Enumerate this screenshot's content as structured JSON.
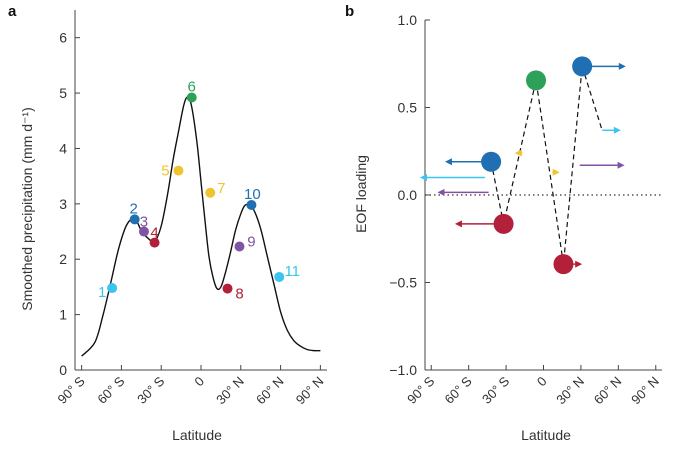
{
  "chart_data": [
    {
      "panel": "a",
      "type": "line",
      "xlabel": "Latitude",
      "ylabel": "Smoothed precipitation (mm d⁻¹)",
      "xlim": [
        -95,
        95
      ],
      "ylim": [
        0,
        6.5
      ],
      "x_ticks": [
        -90,
        -60,
        -30,
        0,
        30,
        60,
        90
      ],
      "x_tick_labels": [
        "90° S",
        "60° S",
        "30° S",
        "0",
        "30° N",
        "60° N",
        "90° N"
      ],
      "y_ticks": [
        0,
        1,
        2,
        3,
        4,
        5,
        6
      ],
      "y_tick_labels": [
        "0",
        "1",
        "2",
        "3",
        "4",
        "5",
        "6"
      ],
      "curve": {
        "x": [
          -90,
          -80,
          -74,
          -68,
          -62,
          -56,
          -50,
          -45,
          -40,
          -35,
          -30,
          -25,
          -21,
          -17,
          -13,
          -10,
          -7,
          -3,
          0,
          3,
          6,
          9,
          12,
          15,
          18,
          22,
          26,
          30,
          33,
          36,
          40,
          45,
          50,
          55,
          60,
          65,
          70,
          75,
          80,
          85,
          90
        ],
        "y": [
          0.25,
          0.5,
          0.98,
          1.58,
          2.2,
          2.62,
          2.73,
          2.52,
          2.38,
          2.32,
          2.6,
          3.2,
          3.8,
          4.3,
          4.78,
          4.93,
          4.75,
          4.1,
          3.4,
          2.7,
          2.05,
          1.68,
          1.47,
          1.5,
          1.72,
          2.1,
          2.52,
          2.82,
          2.97,
          2.98,
          2.88,
          2.55,
          2.05,
          1.55,
          1.05,
          0.72,
          0.53,
          0.43,
          0.37,
          0.35,
          0.35
        ]
      },
      "points": [
        {
          "label": "1",
          "x": -67,
          "y": 1.48,
          "color": "#3cc3ef"
        },
        {
          "label": "2",
          "x": -50,
          "y": 2.72,
          "color": "#1f6fb2"
        },
        {
          "label": "3",
          "x": -43,
          "y": 2.5,
          "color": "#8154a3"
        },
        {
          "label": "4",
          "x": -35,
          "y": 2.3,
          "color": "#b3203a"
        },
        {
          "label": "5",
          "x": -17,
          "y": 3.6,
          "color": "#f0c330"
        },
        {
          "label": "6",
          "x": -7,
          "y": 4.92,
          "color": "#2da05a"
        },
        {
          "label": "7",
          "x": 7,
          "y": 3.2,
          "color": "#f0c330"
        },
        {
          "label": "8",
          "x": 20,
          "y": 1.47,
          "color": "#b3203a"
        },
        {
          "label": "9",
          "x": 29,
          "y": 2.23,
          "color": "#8154a3"
        },
        {
          "label": "10",
          "x": 38,
          "y": 2.98,
          "color": "#1f6fb2"
        },
        {
          "label": "11",
          "x": 59,
          "y": 1.68,
          "color": "#3cc3ef"
        }
      ]
    },
    {
      "panel": "b",
      "type": "scatter",
      "xlabel": "Latitude",
      "ylabel": "EOF loading",
      "xlim": [
        -95,
        95
      ],
      "ylim": [
        -1.0,
        1.0
      ],
      "x_ticks": [
        -90,
        -60,
        -30,
        0,
        30,
        60,
        90
      ],
      "x_tick_labels": [
        "90° S",
        "60° S",
        "30° S",
        "0",
        "30° N",
        "60° N",
        "90° N"
      ],
      "y_ticks": [
        -1.0,
        -0.5,
        0.0,
        0.5,
        1.0
      ],
      "y_tick_labels": [
        "−1.0",
        "−0.5",
        "0.0",
        "0.5",
        "1.0"
      ],
      "zero_line": "dotted",
      "points": [
        {
          "x": -42,
          "y": 0.19,
          "color": "#1f6fb2",
          "size": 10
        },
        {
          "x": -32,
          "y": -0.165,
          "color": "#b3203a",
          "size": 10
        },
        {
          "x": -6,
          "y": 0.655,
          "color": "#2da05a",
          "size": 10
        },
        {
          "x": 16,
          "y": -0.395,
          "color": "#b3203a",
          "size": 10
        },
        {
          "x": 31,
          "y": 0.735,
          "color": "#1f6fb2",
          "size": 10
        }
      ],
      "dashed_path": {
        "x": [
          -42,
          -32,
          -6,
          16,
          31,
          47
        ],
        "y": [
          0.19,
          -0.165,
          0.655,
          -0.395,
          0.735,
          0.37
        ]
      },
      "arrows": [
        {
          "x": -42,
          "y": 0.19,
          "dx": -37,
          "color": "#1f6fb2"
        },
        {
          "x": -47,
          "y": 0.1,
          "dx": -52,
          "color": "#3cc3ef"
        },
        {
          "x": -44,
          "y": 0.015,
          "dx": -41,
          "color": "#8154a3"
        },
        {
          "x": -32,
          "y": -0.165,
          "dx": -39,
          "color": "#b3203a"
        },
        {
          "x": -17,
          "y": 0.24,
          "dx": -6,
          "color": "#f0c330"
        },
        {
          "x": 7,
          "y": 0.13,
          "dx": 6,
          "color": "#f0c330"
        },
        {
          "x": 16,
          "y": -0.395,
          "dx": 15,
          "color": "#b3203a"
        },
        {
          "x": 29,
          "y": 0.17,
          "dx": 36,
          "color": "#8154a3"
        },
        {
          "x": 31,
          "y": 0.735,
          "dx": 35,
          "color": "#1f6fb2"
        },
        {
          "x": 47,
          "y": 0.37,
          "dx": 15,
          "color": "#3cc3ef"
        }
      ]
    }
  ]
}
